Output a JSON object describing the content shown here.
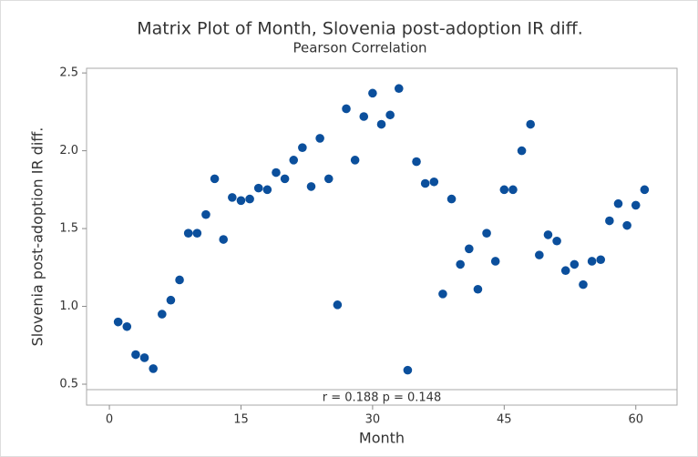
{
  "chart_data": {
    "type": "scatter",
    "title": "Matrix Plot of Month, Slovenia post-adoption IR diff.",
    "subtitle": "Pearson Correlation",
    "x_label": "Month",
    "y_label": "Slovenia post-adoption IR diff.",
    "annotation": "r = 0.188  p = 0.148",
    "color": "#0b4f9c",
    "x": [
      1,
      2,
      3,
      4,
      5,
      6,
      7,
      8,
      9,
      10,
      11,
      12,
      13,
      14,
      15,
      16,
      17,
      18,
      19,
      20,
      21,
      22,
      23,
      24,
      25,
      26,
      27,
      28,
      29,
      30,
      31,
      32,
      33,
      34,
      35,
      36,
      37,
      38,
      39,
      40,
      41,
      42,
      43,
      44,
      45,
      46,
      47,
      48,
      49,
      50,
      51,
      52,
      53,
      54,
      55,
      56,
      57,
      58,
      59,
      60,
      61
    ],
    "values": [
      0.9,
      0.87,
      0.69,
      0.67,
      0.6,
      0.95,
      1.04,
      1.17,
      1.47,
      1.47,
      1.59,
      1.82,
      1.43,
      1.7,
      1.68,
      1.69,
      1.76,
      1.75,
      1.86,
      1.82,
      1.94,
      2.02,
      1.77,
      2.08,
      1.82,
      1.01,
      2.27,
      1.94,
      2.22,
      2.37,
      2.17,
      2.23,
      2.4,
      0.59,
      1.93,
      1.79,
      1.8,
      1.08,
      1.69,
      1.27,
      1.37,
      1.11,
      1.47,
      1.29,
      1.75,
      1.75,
      2.0,
      2.17,
      1.33,
      1.46,
      1.42,
      1.23,
      1.27,
      1.14,
      1.29,
      1.3,
      1.55,
      1.66,
      1.52,
      1.65,
      1.75
    ],
    "xlim": [
      -2.6,
      64.7
    ],
    "xticks": [
      0,
      15,
      30,
      45,
      60
    ],
    "ylim": [
      0.465,
      2.53
    ],
    "yticks": [
      {
        "value": 0.5,
        "label": "0.5"
      },
      {
        "value": 1.0,
        "label": "1.0"
      },
      {
        "value": 1.5,
        "label": "1.5"
      },
      {
        "value": 2.0,
        "label": "2.0"
      },
      {
        "value": 2.5,
        "label": "2.5"
      }
    ],
    "grid": false
  }
}
